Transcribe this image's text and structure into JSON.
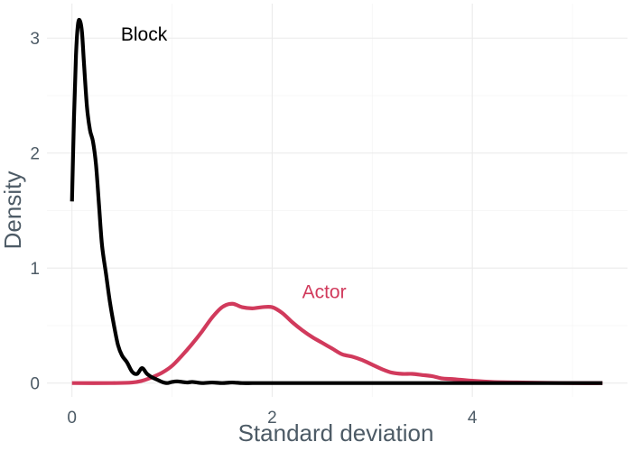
{
  "chart_data": {
    "type": "line",
    "xlabel": "Standard deviation",
    "ylabel": "Density",
    "xlim": [
      -0.25,
      5.55
    ],
    "ylim": [
      -0.12,
      3.3
    ],
    "x_ticks": [
      0,
      2,
      4
    ],
    "y_ticks": [
      0,
      1,
      2,
      3
    ],
    "x_tick_labels": [
      "0",
      "2",
      "4"
    ],
    "y_tick_labels": [
      "0",
      "1",
      "2",
      "3"
    ],
    "grid": true,
    "legend": "none",
    "series": [
      {
        "name": "Block",
        "color": "#000000",
        "label_x": 0.72,
        "label_y": 2.98,
        "x": [
          0.0,
          0.02,
          0.04,
          0.06,
          0.08,
          0.1,
          0.12,
          0.15,
          0.18,
          0.21,
          0.24,
          0.27,
          0.3,
          0.34,
          0.38,
          0.42,
          0.46,
          0.5,
          0.55,
          0.6,
          0.65,
          0.7,
          0.75,
          0.8,
          0.85,
          0.9,
          0.95,
          1.0,
          1.05,
          1.1,
          1.15,
          1.2,
          1.25,
          1.3,
          1.4,
          1.5,
          1.6,
          1.7,
          1.8,
          1.9,
          2.0,
          2.5,
          3.0,
          3.5,
          4.0,
          4.5,
          5.0,
          5.3
        ],
        "values": [
          1.58,
          2.3,
          2.85,
          3.12,
          3.15,
          3.05,
          2.78,
          2.4,
          2.2,
          2.1,
          1.9,
          1.55,
          1.2,
          0.95,
          0.7,
          0.5,
          0.33,
          0.24,
          0.18,
          0.1,
          0.08,
          0.13,
          0.08,
          0.05,
          0.03,
          0.01,
          0.0,
          0.01,
          0.015,
          0.01,
          0.005,
          0.01,
          0.005,
          0.0,
          0.005,
          0.0,
          0.005,
          0.0,
          0.0,
          0.0,
          0.0,
          0.0,
          0.0,
          0.0,
          0.0,
          0.0,
          0.0,
          0.0
        ]
      },
      {
        "name": "Actor",
        "color": "#d13a5c",
        "label_x": 2.52,
        "label_y": 0.74,
        "x": [
          0.0,
          0.4,
          0.6,
          0.7,
          0.8,
          0.9,
          1.0,
          1.1,
          1.2,
          1.3,
          1.4,
          1.5,
          1.6,
          1.7,
          1.8,
          1.9,
          2.0,
          2.1,
          2.2,
          2.3,
          2.4,
          2.5,
          2.6,
          2.7,
          2.8,
          2.9,
          3.0,
          3.1,
          3.2,
          3.3,
          3.4,
          3.5,
          3.6,
          3.7,
          3.8,
          4.0,
          4.2,
          4.5,
          5.0,
          5.3
        ],
        "values": [
          0.0,
          0.0,
          0.005,
          0.02,
          0.05,
          0.09,
          0.15,
          0.24,
          0.34,
          0.45,
          0.57,
          0.66,
          0.69,
          0.66,
          0.65,
          0.66,
          0.66,
          0.61,
          0.53,
          0.46,
          0.4,
          0.35,
          0.3,
          0.25,
          0.23,
          0.2,
          0.16,
          0.12,
          0.09,
          0.08,
          0.08,
          0.07,
          0.06,
          0.04,
          0.035,
          0.02,
          0.01,
          0.005,
          0.0,
          0.0
        ]
      }
    ]
  }
}
